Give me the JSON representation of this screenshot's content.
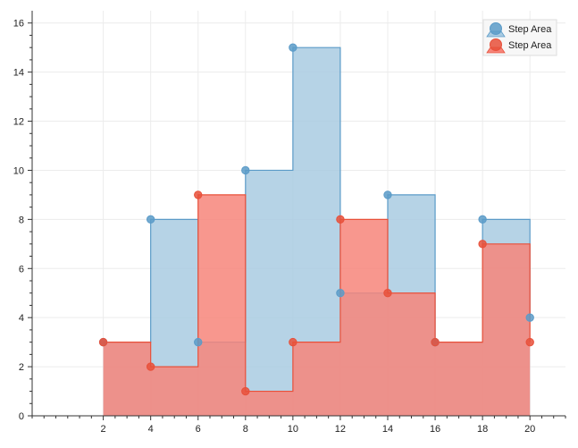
{
  "chart_data": {
    "type": "area",
    "step": true,
    "x": [
      2,
      4,
      6,
      8,
      10,
      12,
      14,
      16,
      18,
      20
    ],
    "xlim": [
      -1,
      21.5
    ],
    "ylim": [
      0,
      16.5
    ],
    "xticks": [
      2,
      4,
      6,
      8,
      10,
      12,
      14,
      16,
      18,
      20
    ],
    "yticks": [
      0,
      2,
      4,
      6,
      8,
      10,
      12,
      14,
      16
    ],
    "grid": true,
    "legend": "top-right",
    "title": "",
    "xlabel": "",
    "ylabel": "",
    "series": [
      {
        "name": "Step Area",
        "values": [
          3,
          8,
          3,
          10,
          15,
          5,
          9,
          3,
          8,
          4
        ],
        "color": "#5b9bc8",
        "fill": "#a9cbe2"
      },
      {
        "name": "Step Area",
        "values": [
          3,
          2,
          9,
          1,
          3,
          8,
          5,
          3,
          7,
          3
        ],
        "color": "#e8503a",
        "fill": "#f7857a"
      }
    ]
  }
}
